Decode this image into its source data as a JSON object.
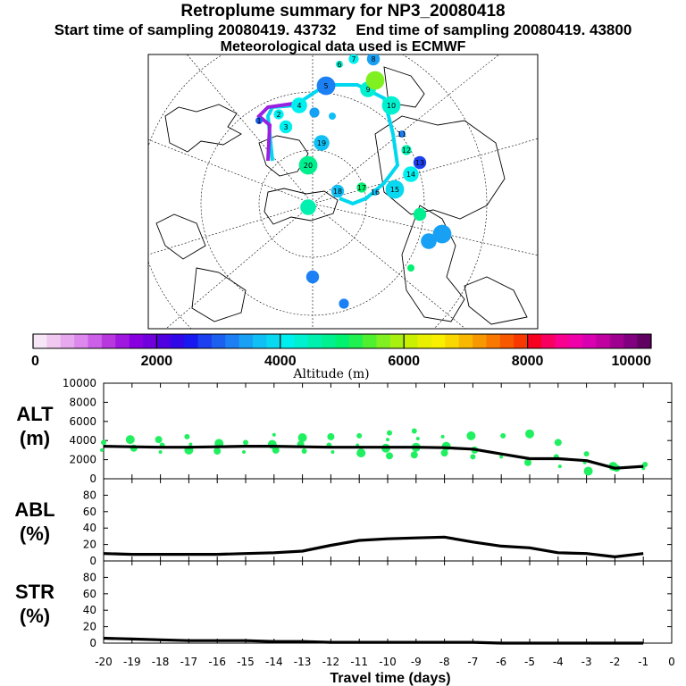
{
  "header": {
    "title": "Retroplume summary for NP3_20080418",
    "start_label": "Start time of sampling 20080419. 43732",
    "end_label": "End time of sampling 20080419. 43800",
    "met_label": "Meteorological data used is ECMWF"
  },
  "map": {
    "projection": "north polar stereographic",
    "point_labels": [
      "1",
      "2",
      "3",
      "4",
      "5",
      "6",
      "7",
      "8",
      "9",
      "10",
      "11",
      "12",
      "13",
      "14",
      "15",
      "16",
      "17",
      "18",
      "19",
      "20"
    ]
  },
  "colorbar": {
    "label": "Altitude (m)",
    "ticks": [
      "0",
      "2000",
      "4000",
      "6000",
      "8000",
      "10000"
    ],
    "min": 0,
    "max": 10000,
    "colors": [
      "#f7e6f7",
      "#f0c8f0",
      "#e8a8f0",
      "#dc88ec",
      "#cc60e8",
      "#b838e0",
      "#a018e0",
      "#8800e0",
      "#7000dc",
      "#5000e0",
      "#3008e8",
      "#1818f0",
      "#1c40f0",
      "#1c60f0",
      "#1c80f4",
      "#18a0f4",
      "#10c0f4",
      "#08d8f0",
      "#00f0f0",
      "#00f0d0",
      "#00f0b0",
      "#00f090",
      "#00f070",
      "#20f050",
      "#50f030",
      "#80f020",
      "#a8f010",
      "#c8f000",
      "#e8f000",
      "#f8f000",
      "#f8d800",
      "#f8b800",
      "#f89800",
      "#f87800",
      "#f85800",
      "#f83800",
      "#f80020",
      "#f80060",
      "#f80090",
      "#f000a8",
      "#d800b0",
      "#c000a0",
      "#a00090",
      "#800080",
      "#600060"
    ]
  },
  "chart_data": [
    {
      "type": "line",
      "name": "ALT",
      "ylabel": "ALT\n(m)",
      "ylabel_lines": [
        "ALT",
        "(m)"
      ],
      "x": [
        -20,
        -19,
        -18,
        -17,
        -16,
        -15,
        -14,
        -13,
        -12,
        -11,
        -10,
        -9,
        -8,
        -7,
        -6,
        -5,
        -4,
        -3,
        -2,
        -1
      ],
      "values": [
        3400,
        3350,
        3300,
        3300,
        3350,
        3400,
        3400,
        3350,
        3300,
        3300,
        3300,
        3300,
        3250,
        3100,
        2600,
        2100,
        2100,
        1900,
        1100,
        1300
      ],
      "yticks": [
        "0",
        "2000",
        "4000",
        "6000",
        "8000",
        "10000"
      ],
      "ylim": [
        0,
        10000
      ],
      "scatter": [
        {
          "x": -20,
          "y": 3000
        },
        {
          "x": -20,
          "y": 3800
        },
        {
          "x": -19,
          "y": 3200
        },
        {
          "x": -19,
          "y": 4100
        },
        {
          "x": -18,
          "y": 2800
        },
        {
          "x": -18,
          "y": 3500
        },
        {
          "x": -18,
          "y": 4100
        },
        {
          "x": -17,
          "y": 3000
        },
        {
          "x": -17,
          "y": 3600
        },
        {
          "x": -17,
          "y": 4400
        },
        {
          "x": -16,
          "y": 2900
        },
        {
          "x": -16,
          "y": 3700
        },
        {
          "x": -15,
          "y": 2800
        },
        {
          "x": -15,
          "y": 3800
        },
        {
          "x": -14,
          "y": 3000
        },
        {
          "x": -14,
          "y": 3600
        },
        {
          "x": -14,
          "y": 4600
        },
        {
          "x": -13,
          "y": 2900
        },
        {
          "x": -13,
          "y": 3600
        },
        {
          "x": -13,
          "y": 4300
        },
        {
          "x": -12,
          "y": 2800
        },
        {
          "x": -12,
          "y": 3500
        },
        {
          "x": -12,
          "y": 4400
        },
        {
          "x": -11,
          "y": 2700
        },
        {
          "x": -11,
          "y": 3500
        },
        {
          "x": -11,
          "y": 4500
        },
        {
          "x": -10,
          "y": 2400
        },
        {
          "x": -10,
          "y": 3200
        },
        {
          "x": -10,
          "y": 4100
        },
        {
          "x": -10,
          "y": 4800
        },
        {
          "x": -9,
          "y": 2500
        },
        {
          "x": -9,
          "y": 3300
        },
        {
          "x": -9,
          "y": 4200
        },
        {
          "x": -9,
          "y": 5000
        },
        {
          "x": -8,
          "y": 2700
        },
        {
          "x": -8,
          "y": 3400
        },
        {
          "x": -8,
          "y": 4400
        },
        {
          "x": -7,
          "y": 2300
        },
        {
          "x": -7,
          "y": 3000
        },
        {
          "x": -7,
          "y": 4500
        },
        {
          "x": -6,
          "y": 2300
        },
        {
          "x": -6,
          "y": 4500
        },
        {
          "x": -5,
          "y": 1700
        },
        {
          "x": -5,
          "y": 4700
        },
        {
          "x": -4,
          "y": 1300
        },
        {
          "x": -4,
          "y": 2300
        },
        {
          "x": -4,
          "y": 3800
        },
        {
          "x": -3,
          "y": 800
        },
        {
          "x": -3,
          "y": 1700
        },
        {
          "x": -3,
          "y": 2600
        },
        {
          "x": -2,
          "y": 1100
        },
        {
          "x": -2,
          "y": 1300
        },
        {
          "x": -1,
          "y": 1100
        },
        {
          "x": -1,
          "y": 1500
        }
      ]
    },
    {
      "type": "line",
      "name": "ABL",
      "ylabel": "ABL\n(%)",
      "ylabel_lines": [
        "ABL",
        "(%)"
      ],
      "x": [
        -20,
        -19,
        -18,
        -17,
        -16,
        -15,
        -14,
        -13,
        -12,
        -11,
        -10,
        -9,
        -8,
        -7,
        -6,
        -5,
        -4,
        -3,
        -2,
        -1
      ],
      "values": [
        9,
        8,
        8,
        8,
        8,
        9,
        10,
        12,
        19,
        25,
        27,
        28,
        29,
        23,
        18,
        16,
        10,
        9,
        5,
        9
      ],
      "yticks": [
        "0",
        "20",
        "40",
        "60",
        "80"
      ],
      "ylim": [
        0,
        100
      ]
    },
    {
      "type": "line",
      "name": "STR",
      "ylabel": "STR\n(%)",
      "ylabel_lines": [
        "STR",
        "(%)"
      ],
      "x": [
        -20,
        -19,
        -18,
        -17,
        -16,
        -15,
        -14,
        -13,
        -12,
        -11,
        -10,
        -9,
        -8,
        -7,
        -6,
        -5,
        -4,
        -3,
        -2,
        -1
      ],
      "values": [
        6,
        5,
        4,
        3,
        3,
        3,
        2,
        2,
        1,
        1,
        1,
        1,
        1,
        1,
        0,
        0,
        0,
        0,
        0,
        0
      ],
      "yticks": [
        "0",
        "20",
        "40",
        "60",
        "80"
      ],
      "ylim": [
        0,
        100
      ]
    }
  ],
  "xaxis": {
    "label": "Travel time (days)",
    "ticks": [
      "-20",
      "-19",
      "-18",
      "-17",
      "-16",
      "-15",
      "-14",
      "-13",
      "-12",
      "-11",
      "-10",
      "-9",
      "-8",
      "-7",
      "-6",
      "-5",
      "-4",
      "-3",
      "-2",
      "-1",
      "0"
    ],
    "xlim": [
      -20,
      0
    ]
  }
}
